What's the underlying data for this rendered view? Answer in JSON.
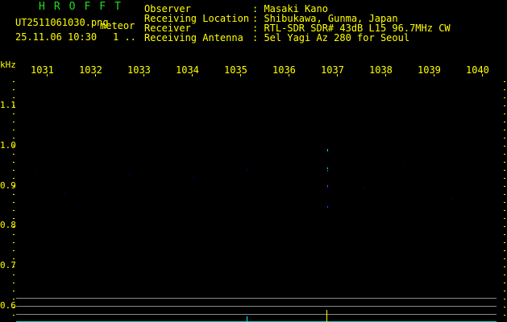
{
  "header": {
    "title": "HROFFT",
    "filename": "UT2511061030.png",
    "mode": "meteor",
    "datetime": "25.11.06 10:30",
    "counter": "1 ..",
    "info": [
      {
        "label": "Observer",
        "value": "Masaki Kano"
      },
      {
        "label": "Receiving Location",
        "value": "Shibukawa, Gunma, Japan"
      },
      {
        "label": "Receiver",
        "value": "RTL-SDR SDR# 43dB L15 96.7MHz CW"
      },
      {
        "label": "Receiving Antenna",
        "value": "5el Yagi Az 280 for Seoul"
      }
    ]
  },
  "axes": {
    "x_unit": "kHz",
    "x_labels": [
      "1031",
      "1032",
      "1033",
      "1034",
      "1035",
      "1036",
      "1037",
      "1038",
      "1039",
      "1040"
    ],
    "y_labels": [
      "1.1",
      "1.0",
      "0.9",
      "0.8",
      "0.7",
      "0.6"
    ]
  },
  "colors": {
    "text": "#ffff00",
    "title": "#22dd22",
    "signal": "#00ffff",
    "grid": "#888888"
  }
}
